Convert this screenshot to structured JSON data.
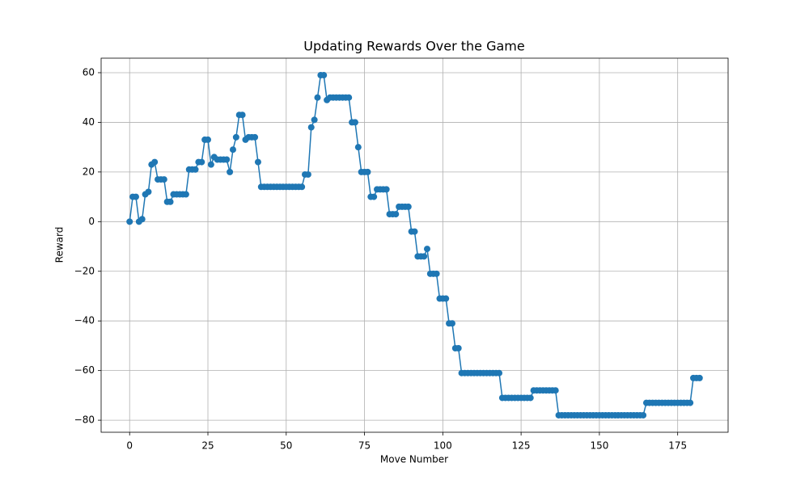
{
  "chart_data": {
    "type": "line",
    "title": "Updating Rewards Over the Game",
    "x_label": "Move Number",
    "y_label": "Reward",
    "x": [
      0,
      1,
      2,
      3,
      4,
      5,
      6,
      7,
      8,
      9,
      10,
      11,
      12,
      13,
      14,
      15,
      16,
      17,
      18,
      19,
      20,
      21,
      22,
      23,
      24,
      25,
      26,
      27,
      28,
      29,
      30,
      31,
      32,
      33,
      34,
      35,
      36,
      37,
      38,
      39,
      40,
      41,
      42,
      43,
      44,
      45,
      46,
      47,
      48,
      49,
      50,
      51,
      52,
      53,
      54,
      55,
      56,
      57,
      58,
      59,
      60,
      61,
      62,
      63,
      64,
      65,
      66,
      67,
      68,
      69,
      70,
      71,
      72,
      73,
      74,
      75,
      76,
      77,
      78,
      79,
      80,
      81,
      82,
      83,
      84,
      85,
      86,
      87,
      88,
      89,
      90,
      91,
      92,
      93,
      94,
      95,
      96,
      97,
      98,
      99,
      100,
      101,
      102,
      103,
      104,
      105,
      106,
      107,
      108,
      109,
      110,
      111,
      112,
      113,
      114,
      115,
      116,
      117,
      118,
      119,
      120,
      121,
      122,
      123,
      124,
      125,
      126,
      127,
      128,
      129,
      130,
      131,
      132,
      133,
      134,
      135,
      136,
      137,
      138,
      139,
      140,
      141,
      142,
      143,
      144,
      145,
      146,
      147,
      148,
      149,
      150,
      151,
      152,
      153,
      154,
      155,
      156,
      157,
      158,
      159,
      160,
      161,
      162,
      163,
      164,
      165,
      166,
      167,
      168,
      169,
      170,
      171,
      172,
      173,
      174,
      175,
      176,
      177,
      178,
      179,
      180,
      181,
      182
    ],
    "series": [
      {
        "color": "#1f77b4",
        "values": [
          0,
          10,
          10,
          0,
          1,
          11,
          12,
          23,
          24,
          17,
          17,
          17,
          8,
          8,
          11,
          11,
          11,
          11,
          11,
          21,
          21,
          21,
          24,
          24,
          33,
          33,
          23,
          26,
          25,
          25,
          25,
          25,
          20,
          29,
          34,
          43,
          43,
          33,
          34,
          34,
          34,
          24,
          14,
          14,
          14,
          14,
          14,
          14,
          14,
          14,
          14,
          14,
          14,
          14,
          14,
          14,
          19,
          19,
          38,
          41,
          50,
          59,
          59,
          49,
          50,
          50,
          50,
          50,
          50,
          50,
          50,
          40,
          40,
          30,
          20,
          20,
          20,
          10,
          10,
          13,
          13,
          13,
          13,
          3,
          3,
          3,
          6,
          6,
          6,
          6,
          -4,
          -4,
          -14,
          -14,
          -14,
          -11,
          -21,
          -21,
          -21,
          -31,
          -31,
          -31,
          -41,
          -41,
          -51,
          -51,
          -61,
          -61,
          -61,
          -61,
          -61,
          -61,
          -61,
          -61,
          -61,
          -61,
          -61,
          -61,
          -61,
          -71,
          -71,
          -71,
          -71,
          -71,
          -71,
          -71,
          -71,
          -71,
          -71,
          -68,
          -68,
          -68,
          -68,
          -68,
          -68,
          -68,
          -68,
          -78,
          -78,
          -78,
          -78,
          -78,
          -78,
          -78,
          -78,
          -78,
          -78,
          -78,
          -78,
          -78,
          -78,
          -78,
          -78,
          -78,
          -78,
          -78,
          -78,
          -78,
          -78,
          -78,
          -78,
          -78,
          -78,
          -78,
          -78,
          -73,
          -73,
          -73,
          -73,
          -73,
          -73,
          -73,
          -73,
          -73,
          -73,
          -73,
          -73,
          -73,
          -73,
          -73,
          -63,
          -63,
          -63
        ]
      }
    ],
    "xlim": [
      -9.1,
      191.1
    ],
    "ylim": [
      -84.85,
      65.85
    ],
    "xticks": [
      0,
      25,
      50,
      75,
      100,
      125,
      150,
      175
    ],
    "yticks": [
      {
        "value": -80,
        "label": "−80"
      },
      {
        "value": -60,
        "label": "−60"
      },
      {
        "value": -40,
        "label": "−40"
      },
      {
        "value": -20,
        "label": "−20"
      },
      0,
      20,
      40,
      60
    ],
    "grid": true
  }
}
